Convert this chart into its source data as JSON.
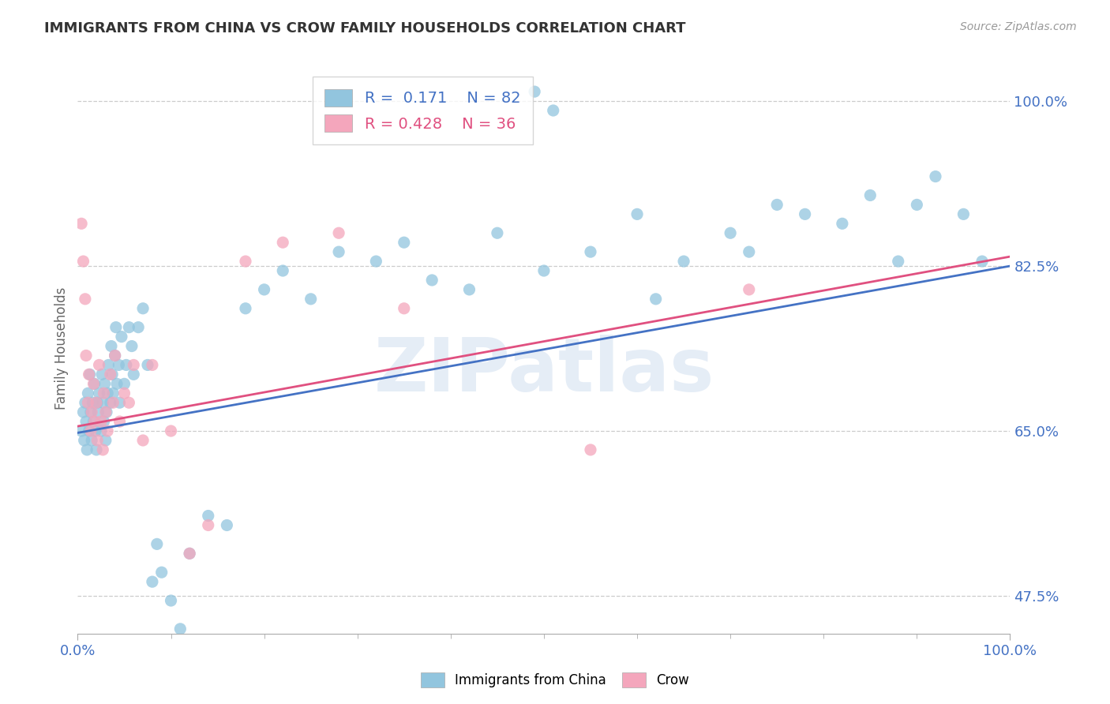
{
  "title": "IMMIGRANTS FROM CHINA VS CROW FAMILY HOUSEHOLDS CORRELATION CHART",
  "source_text": "Source: ZipAtlas.com",
  "ylabel": "Family Households",
  "xlim": [
    0.0,
    1.0
  ],
  "ylim": [
    0.435,
    1.04
  ],
  "yticks": [
    0.475,
    0.65,
    0.825,
    1.0
  ],
  "ytick_labels": [
    "47.5%",
    "65.0%",
    "82.5%",
    "100.0%"
  ],
  "xticks": [
    0.0,
    1.0
  ],
  "xtick_labels": [
    "0.0%",
    "100.0%"
  ],
  "blue_color": "#92c5de",
  "pink_color": "#f4a6bc",
  "blue_line_color": "#4472c4",
  "pink_line_color": "#e05080",
  "legend_R1": "0.171",
  "legend_N1": "82",
  "legend_R2": "0.428",
  "legend_N2": "36",
  "label1": "Immigrants from China",
  "label2": "Crow",
  "watermark": "ZIPatlas",
  "blue_line_x0": 0.0,
  "blue_line_y0": 0.648,
  "blue_line_x1": 1.0,
  "blue_line_y1": 0.825,
  "pink_line_x0": 0.0,
  "pink_line_y0": 0.655,
  "pink_line_x1": 1.0,
  "pink_line_y1": 0.835,
  "blue_x": [
    0.004,
    0.006,
    0.007,
    0.008,
    0.009,
    0.01,
    0.011,
    0.012,
    0.013,
    0.014,
    0.015,
    0.016,
    0.017,
    0.018,
    0.019,
    0.02,
    0.021,
    0.022,
    0.023,
    0.025,
    0.026,
    0.027,
    0.028,
    0.029,
    0.03,
    0.031,
    0.032,
    0.033,
    0.035,
    0.036,
    0.037,
    0.038,
    0.04,
    0.041,
    0.042,
    0.044,
    0.045,
    0.047,
    0.05,
    0.052,
    0.055,
    0.058,
    0.06,
    0.065,
    0.07,
    0.075,
    0.08,
    0.085,
    0.09,
    0.1,
    0.11,
    0.12,
    0.14,
    0.16,
    0.18,
    0.2,
    0.22,
    0.25,
    0.28,
    0.32,
    0.35,
    0.38,
    0.42,
    0.45,
    0.5,
    0.55,
    0.6,
    0.62,
    0.65,
    0.7,
    0.72,
    0.75,
    0.78,
    0.82,
    0.85,
    0.88,
    0.9,
    0.92,
    0.95,
    0.97,
    0.51,
    0.49
  ],
  "blue_y": [
    0.65,
    0.67,
    0.64,
    0.68,
    0.66,
    0.63,
    0.69,
    0.65,
    0.71,
    0.67,
    0.64,
    0.68,
    0.66,
    0.7,
    0.65,
    0.63,
    0.68,
    0.67,
    0.69,
    0.65,
    0.71,
    0.68,
    0.66,
    0.7,
    0.64,
    0.67,
    0.69,
    0.72,
    0.68,
    0.74,
    0.71,
    0.69,
    0.73,
    0.76,
    0.7,
    0.72,
    0.68,
    0.75,
    0.7,
    0.72,
    0.76,
    0.74,
    0.71,
    0.76,
    0.78,
    0.72,
    0.49,
    0.53,
    0.5,
    0.47,
    0.44,
    0.52,
    0.56,
    0.55,
    0.78,
    0.8,
    0.82,
    0.79,
    0.84,
    0.83,
    0.85,
    0.81,
    0.8,
    0.86,
    0.82,
    0.84,
    0.88,
    0.79,
    0.83,
    0.86,
    0.84,
    0.89,
    0.88,
    0.87,
    0.9,
    0.83,
    0.89,
    0.92,
    0.88,
    0.83,
    0.99,
    1.01
  ],
  "pink_x": [
    0.004,
    0.006,
    0.008,
    0.009,
    0.011,
    0.012,
    0.014,
    0.015,
    0.017,
    0.018,
    0.02,
    0.021,
    0.023,
    0.025,
    0.027,
    0.028,
    0.03,
    0.032,
    0.035,
    0.038,
    0.04,
    0.045,
    0.05,
    0.055,
    0.06,
    0.07,
    0.08,
    0.1,
    0.12,
    0.14,
    0.18,
    0.22,
    0.28,
    0.35,
    0.55,
    0.72
  ],
  "pink_y": [
    0.87,
    0.83,
    0.79,
    0.73,
    0.68,
    0.71,
    0.65,
    0.67,
    0.7,
    0.66,
    0.68,
    0.64,
    0.72,
    0.66,
    0.63,
    0.69,
    0.67,
    0.65,
    0.71,
    0.68,
    0.73,
    0.66,
    0.69,
    0.68,
    0.72,
    0.64,
    0.72,
    0.65,
    0.52,
    0.55,
    0.83,
    0.85,
    0.86,
    0.78,
    0.63,
    0.8
  ]
}
